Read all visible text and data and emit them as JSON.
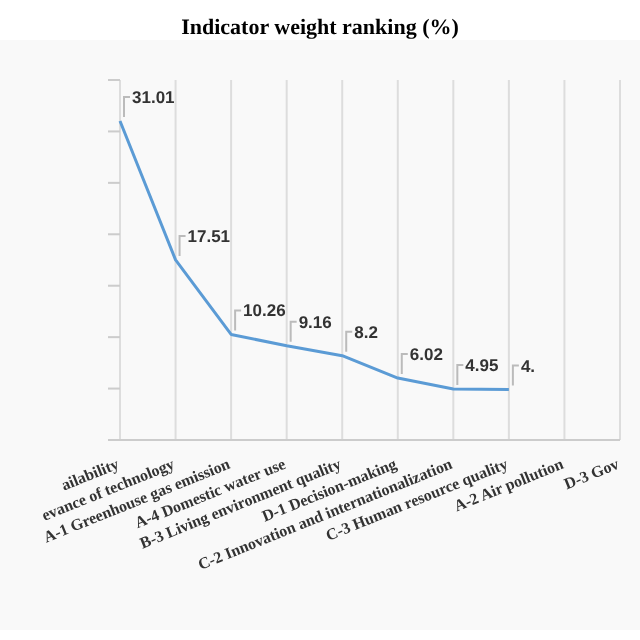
{
  "chart_data": {
    "type": "line",
    "title": "Indicator weight ranking (%)",
    "categories": [
      "ailability",
      "evance of technology",
      "A-1 Greenhouse  gas emission",
      "A-4 Domestic  water  use",
      "B-3 Living  environment  quality",
      "D-1 Decision-making",
      "C-2 Innovation  and internationalization",
      "C-3 Human  resource  quality",
      "A-2 Air pollution",
      "D-3 Gov"
    ],
    "series": [
      {
        "color": "#5b9bd5",
        "values": [
          31.01,
          17.51,
          10.26,
          9.16,
          8.2,
          6.02,
          4.95,
          4.9,
          null,
          null
        ],
        "value_labels": [
          "31.01",
          "17.51",
          "10.26",
          "9.16",
          "8.2",
          "6.02",
          "4.95",
          null,
          null,
          null
        ]
      }
    ],
    "annotations": [
      {
        "text": "4.",
        "x": "C-3 Human  resource  quality",
        "y": 4.9
      }
    ],
    "ylim": [
      0,
      35
    ],
    "yticks": [
      {
        "value": 0,
        "label": null
      },
      {
        "value": 5,
        "label": null
      },
      {
        "value": 10,
        "label": null
      },
      {
        "value": 15,
        "label": null
      },
      {
        "value": 20,
        "label": null
      },
      {
        "value": 25,
        "label": null
      },
      {
        "value": 30,
        "label": null
      },
      {
        "value": 35,
        "label": null
      }
    ],
    "tick_labels": "x",
    "grid": "x",
    "marker": "none",
    "line_style": "solid"
  }
}
